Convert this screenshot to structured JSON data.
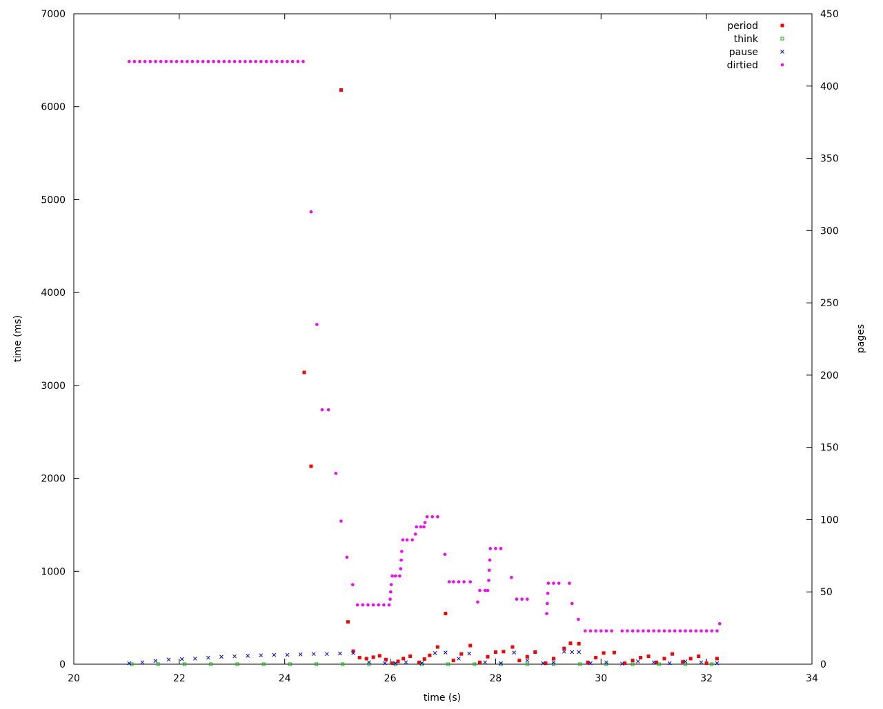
{
  "chart_data": {
    "type": "scatter",
    "x_label": "time (s)",
    "y_label": "time (ms)",
    "y2_label": "pages",
    "xlim": [
      20,
      34
    ],
    "xticks": [
      20,
      22,
      24,
      26,
      28,
      30,
      32,
      34
    ],
    "ylim": [
      0,
      7000
    ],
    "yticks": [
      0,
      1000,
      2000,
      3000,
      4000,
      5000,
      6000,
      7000
    ],
    "y2lim": [
      0,
      450
    ],
    "y2ticks": [
      0,
      50,
      100,
      150,
      200,
      250,
      300,
      350,
      400,
      450
    ],
    "grid": false,
    "legend": "top right",
    "series": [
      {
        "name": "period",
        "color": "#ff0000",
        "marker": "square",
        "x": [
          24.37,
          24.5,
          25.07,
          25.2,
          25.3,
          25.42,
          25.55,
          25.68,
          25.8,
          25.92,
          26.05,
          26.15,
          26.25,
          26.38,
          26.55,
          26.65,
          26.75,
          26.9,
          27.05,
          27.2,
          27.35,
          27.52,
          27.7,
          27.85,
          28.0,
          28.15,
          28.32,
          28.45,
          28.6,
          28.75,
          28.95,
          29.1,
          29.3,
          29.42,
          29.58,
          29.75,
          29.9,
          30.05,
          30.25,
          30.45,
          30.6,
          30.75,
          30.9,
          31.05,
          31.2,
          31.35,
          31.55,
          31.7,
          31.85,
          32.0,
          32.2
        ],
        "values": [
          3140,
          2130,
          6180,
          455,
          140,
          70,
          60,
          75,
          90,
          50,
          10,
          30,
          60,
          85,
          20,
          55,
          95,
          185,
          545,
          40,
          110,
          200,
          20,
          80,
          130,
          135,
          185,
          40,
          80,
          130,
          10,
          60,
          170,
          225,
          220,
          20,
          70,
          120,
          125,
          10,
          40,
          70,
          85,
          20,
          60,
          110,
          25,
          60,
          85,
          10,
          60
        ]
      },
      {
        "name": "think",
        "color": "#00c000",
        "marker": "open-square",
        "x": [
          21.1,
          21.6,
          22.1,
          22.6,
          23.1,
          23.6,
          24.1,
          24.6,
          25.1,
          25.6,
          26.1,
          26.6,
          27.1,
          27.6,
          28.1,
          28.6,
          29.1,
          29.6,
          30.1,
          30.6,
          31.1,
          31.6,
          32.1
        ],
        "values": [
          0,
          0,
          0,
          0,
          0,
          0,
          0,
          0,
          0,
          0,
          0,
          0,
          0,
          0,
          0,
          0,
          0,
          0,
          0,
          0,
          0,
          0,
          0
        ]
      },
      {
        "name": "pause",
        "color": "#0000ff",
        "marker": "cross",
        "x": [
          21.05,
          21.3,
          21.55,
          21.8,
          22.05,
          22.3,
          22.55,
          22.8,
          23.05,
          23.3,
          23.55,
          23.8,
          24.05,
          24.3,
          24.55,
          24.8,
          25.05,
          25.3,
          25.6,
          25.9,
          26.1,
          26.3,
          26.6,
          26.85,
          27.05,
          27.3,
          27.5,
          27.8,
          28.1,
          28.35,
          28.6,
          28.9,
          29.1,
          29.3,
          29.45,
          29.58,
          29.8,
          30.1,
          30.4,
          30.7,
          31.0,
          31.3,
          31.6,
          31.9,
          32.2
        ],
        "values": [
          10,
          20,
          35,
          50,
          55,
          60,
          70,
          80,
          85,
          90,
          95,
          100,
          100,
          105,
          110,
          110,
          115,
          120,
          20,
          10,
          10,
          20,
          10,
          120,
          125,
          60,
          115,
          20,
          10,
          125,
          40,
          10,
          20,
          135,
          130,
          130,
          10,
          20,
          5,
          30,
          20,
          10,
          30,
          20,
          10
        ]
      },
      {
        "name": "dirtied",
        "color": "#ff00ff",
        "marker": "dot",
        "axis": "y2",
        "x": [
          21.05,
          21.15,
          21.25,
          21.35,
          21.45,
          21.55,
          21.65,
          21.75,
          21.85,
          21.95,
          22.05,
          22.15,
          22.25,
          22.35,
          22.45,
          22.55,
          22.65,
          22.75,
          22.85,
          22.95,
          23.05,
          23.15,
          23.25,
          23.35,
          23.45,
          23.55,
          23.65,
          23.75,
          23.85,
          23.95,
          24.05,
          24.15,
          24.25,
          24.35,
          24.5,
          24.61,
          24.71,
          24.83,
          24.97,
          25.07,
          25.18,
          25.29,
          25.38,
          25.48,
          25.58,
          25.68,
          25.78,
          25.88,
          25.98,
          26.0,
          26.01,
          26.02,
          26.04,
          26.1,
          26.18,
          26.2,
          26.21,
          26.22,
          26.24,
          26.32,
          26.42,
          26.48,
          26.5,
          26.58,
          26.64,
          26.66,
          26.7,
          26.8,
          26.9,
          27.04,
          27.12,
          27.2,
          27.3,
          27.4,
          27.52,
          27.66,
          27.7,
          27.8,
          27.85,
          27.87,
          27.88,
          27.89,
          27.9,
          28.0,
          28.1,
          28.3,
          28.4,
          28.5,
          28.6,
          28.97,
          28.98,
          28.99,
          29.0,
          29.1,
          29.2,
          29.4,
          29.45,
          29.57,
          29.7,
          29.8,
          29.9,
          30.0,
          30.1,
          30.2,
          30.4,
          30.5,
          30.6,
          30.7,
          30.8,
          30.9,
          31.0,
          31.1,
          31.2,
          31.3,
          31.4,
          31.5,
          31.6,
          31.7,
          31.8,
          31.9,
          32.0,
          32.1,
          32.2,
          32.25
        ],
        "values": [
          417,
          417,
          417,
          417,
          417,
          417,
          417,
          417,
          417,
          417,
          417,
          417,
          417,
          417,
          417,
          417,
          417,
          417,
          417,
          417,
          417,
          417,
          417,
          417,
          417,
          417,
          417,
          417,
          417,
          417,
          417,
          417,
          417,
          417,
          313,
          235,
          176,
          176,
          132,
          99,
          74,
          55,
          41,
          41,
          41,
          41,
          41,
          41,
          41,
          45,
          50,
          55,
          61,
          61,
          61,
          66,
          72,
          78,
          86,
          86,
          86,
          90,
          95,
          95,
          95,
          98,
          102,
          102,
          102,
          76,
          57,
          57,
          57,
          57,
          57,
          43,
          51,
          51,
          51,
          58,
          65,
          72,
          80,
          80,
          80,
          60,
          45,
          45,
          45,
          35,
          42,
          49,
          56,
          56,
          56,
          56,
          42,
          31,
          23,
          23,
          23,
          23,
          23,
          23,
          23,
          23,
          23,
          23,
          23,
          23,
          23,
          23,
          23,
          23,
          23,
          23,
          23,
          23,
          23,
          23,
          23,
          23,
          23,
          28
        ]
      }
    ]
  }
}
